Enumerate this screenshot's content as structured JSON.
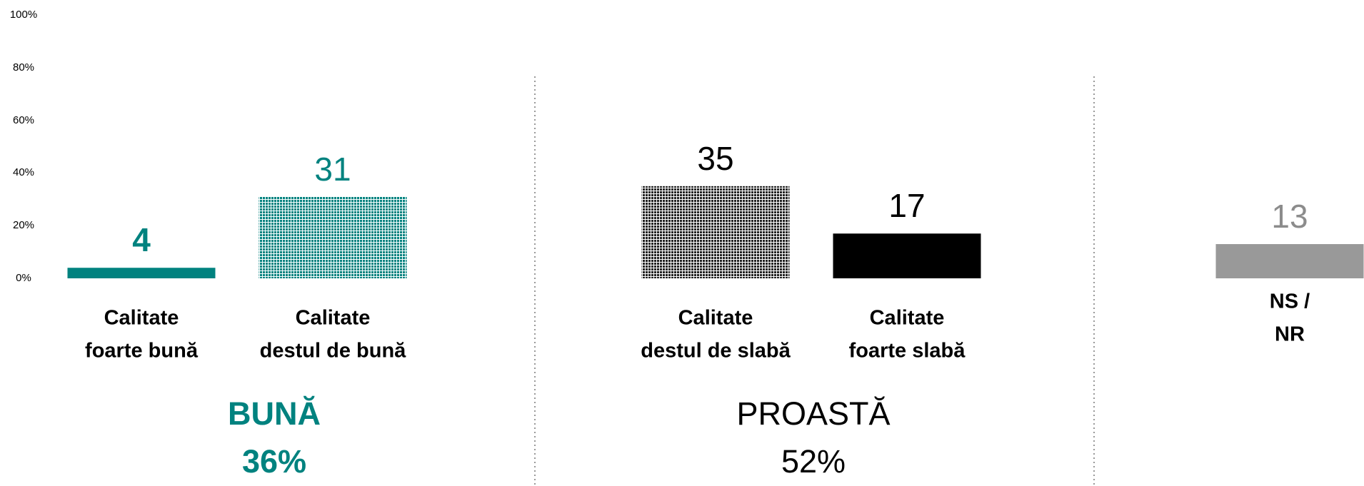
{
  "chart_data": {
    "type": "bar",
    "categories": [
      "Calitate\nfoarte bună",
      "Calitate\ndestul de bună",
      "Calitate\ndestul de slabă",
      "Calitate\nfoarte slabă",
      "NS / NR"
    ],
    "values": [
      4,
      31,
      35,
      17,
      13
    ],
    "colors": [
      "#00827f",
      "#00827f",
      "#222222",
      "#000000",
      "#999999"
    ],
    "fills": [
      "solid",
      "dotted",
      "dotted",
      "solid",
      "solid"
    ],
    "label_colors": [
      "#00827f",
      "#00827f",
      "#000000",
      "#000000",
      "#8c8c8c"
    ],
    "label_bold": [
      true,
      false,
      false,
      false,
      false
    ],
    "ylim": [
      0,
      100
    ],
    "yticks": [
      {
        "value": 0,
        "label": "0%"
      },
      {
        "value": 20,
        "label": "20%"
      },
      {
        "value": 40,
        "label": "40%"
      },
      {
        "value": 60,
        "label": "60%"
      },
      {
        "value": 80,
        "label": "80%"
      },
      {
        "value": 100,
        "label": "100%"
      }
    ],
    "groups": [
      {
        "name": "BUNĂ",
        "value": 36,
        "value_label": "36%",
        "color": "#00827f",
        "bold": true
      },
      {
        "name": "PROASTĂ",
        "value": 52,
        "value_label": "52%",
        "color": "#000000",
        "bold": false
      }
    ]
  }
}
